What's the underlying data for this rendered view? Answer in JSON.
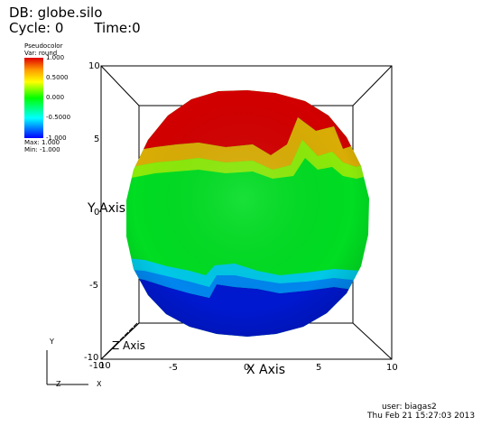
{
  "header": {
    "db_label": "DB: globe.silo",
    "cycle_label": "Cycle: 0",
    "time_label": "Time:0"
  },
  "legend": {
    "plot_type": "Pseudocolor",
    "var_label": "Var: round",
    "ticks": [
      "1.000",
      "0.5000",
      "0.000",
      "-0.5000",
      "-1.000"
    ],
    "max_label": "Max:  1.000",
    "min_label": "Min: -1.000",
    "colors": [
      "#e00000",
      "#ff9a00",
      "#ffff00",
      "#00ff00",
      "#00ffff",
      "#0000ff"
    ]
  },
  "axes": {
    "x_title": "X Axis",
    "y_title": "Y Axis",
    "z_title": "Z Axis",
    "x_ticks": [
      "-10",
      "-5",
      "0",
      "5",
      "10"
    ],
    "y_ticks": [
      "10",
      "5",
      "0",
      "-5",
      "-10"
    ],
    "z_tick": "10"
  },
  "triad": {
    "y": "Y",
    "z": "Z",
    "x": "X"
  },
  "footer": {
    "user": "user: biagas2",
    "date": "Thu Feb 21 15:27:03 2013"
  }
}
